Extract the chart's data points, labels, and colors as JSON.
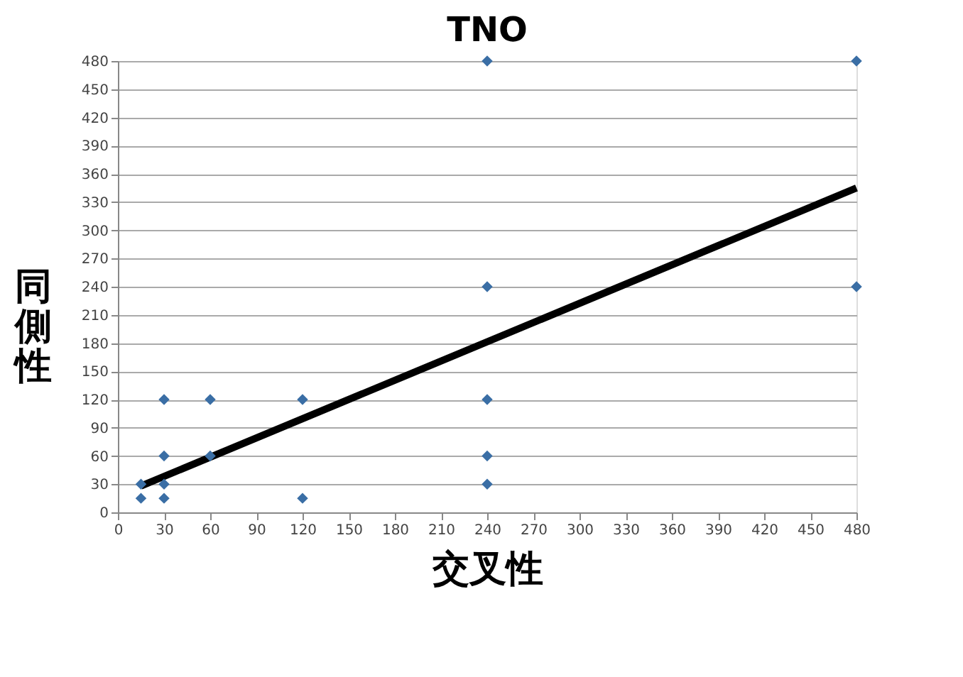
{
  "chart_data": {
    "type": "scatter",
    "title": "TNO",
    "xlabel": "交叉性",
    "ylabel": "同側性",
    "x": [
      15,
      15,
      30,
      30,
      30,
      30,
      60,
      60,
      120,
      120,
      240,
      240,
      240,
      240,
      240,
      480,
      480
    ],
    "series": [
      {
        "color": "#3a6ea5",
        "marker": "diamond",
        "values": [
          15,
          30,
          15,
          30,
          60,
          120,
          60,
          120,
          15,
          120,
          30,
          60,
          120,
          240,
          480,
          480,
          240
        ]
      },
      {
        "type": "line",
        "color": "#000000",
        "x": [
          15,
          480
        ],
        "values": [
          28,
          345
        ],
        "line_style": "solid"
      }
    ],
    "xlim": [
      0,
      480
    ],
    "ylim": [
      0,
      480
    ],
    "xticks": [
      0,
      30,
      60,
      90,
      120,
      150,
      180,
      210,
      240,
      270,
      300,
      330,
      360,
      390,
      420,
      450,
      480
    ],
    "yticks": [
      0,
      30,
      60,
      90,
      120,
      150,
      180,
      210,
      240,
      270,
      300,
      330,
      360,
      390,
      420,
      450,
      480
    ],
    "grid": "y"
  }
}
